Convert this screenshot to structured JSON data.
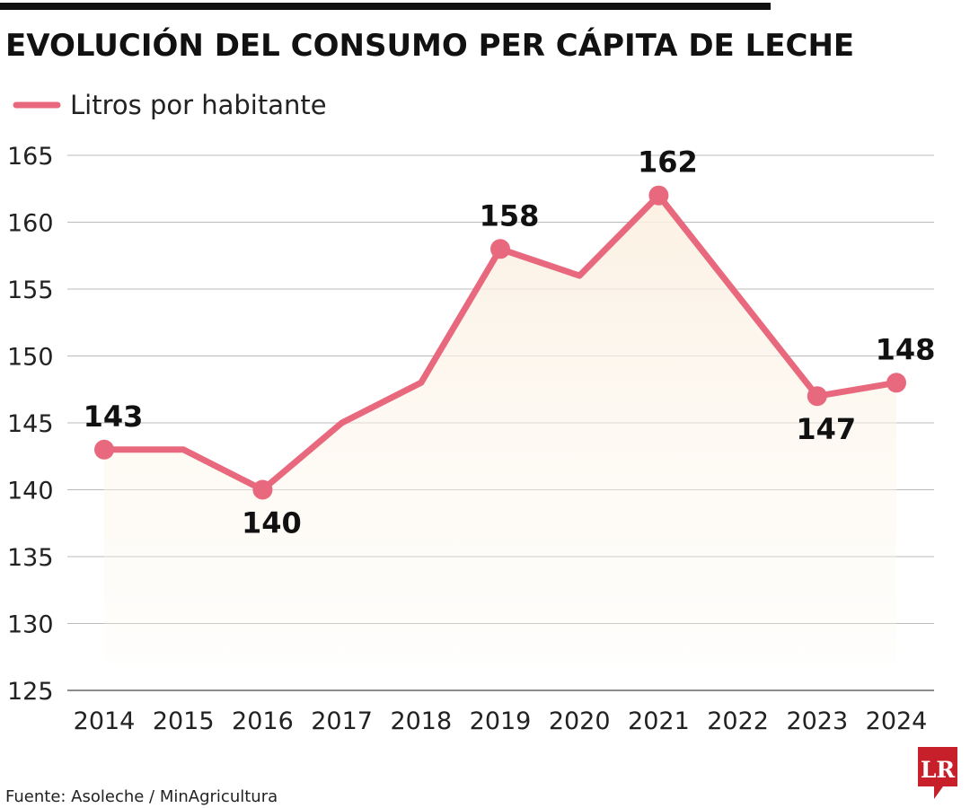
{
  "chart_data": {
    "type": "line",
    "title": "EVOLUCIÓN DEL CONSUMO PER CÁPITA DE LECHE",
    "categories": [
      "2014",
      "2015",
      "2016",
      "2017",
      "2018",
      "2019",
      "2020",
      "2021",
      "2022",
      "2023",
      "2024"
    ],
    "series": [
      {
        "name": "Litros por habitante",
        "values": [
          143,
          143,
          140,
          145,
          148,
          158,
          156,
          162,
          154.5,
          147,
          148
        ]
      }
    ],
    "data_labels": [
      {
        "category": "2014",
        "text": "143",
        "position": "above"
      },
      {
        "category": "2016",
        "text": "140",
        "position": "below"
      },
      {
        "category": "2019",
        "text": "158",
        "position": "above"
      },
      {
        "category": "2021",
        "text": "162",
        "position": "above"
      },
      {
        "category": "2023",
        "text": "147",
        "position": "below"
      },
      {
        "category": "2024",
        "text": "148",
        "position": "above"
      }
    ],
    "yticks": [
      "125",
      "130",
      "135",
      "140",
      "145",
      "150",
      "155",
      "160",
      "165"
    ],
    "ylim": [
      125,
      165
    ],
    "grid": true,
    "legend_position": "top-left",
    "xlabel": "",
    "ylabel": "",
    "colors": {
      "line": "#e8697d",
      "area": "#fdf5ea",
      "grid": "#bbbbbb"
    }
  },
  "source": "Fuente: Asoleche / MinAgricultura",
  "logo": {
    "text": "LR",
    "color": "#c8202a"
  }
}
